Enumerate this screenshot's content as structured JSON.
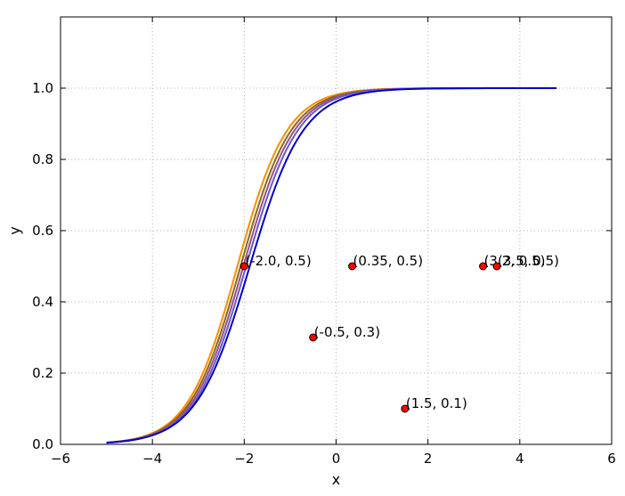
{
  "chart_data": {
    "type": "line",
    "title": "",
    "xlabel": "x",
    "ylabel": "y",
    "xlim": [
      -6,
      6
    ],
    "ylim": [
      0,
      1.2
    ],
    "x_ticks": [
      "−6",
      "−4",
      "−2",
      "0",
      "2",
      "4",
      "6"
    ],
    "x_tick_values": [
      -6,
      -4,
      -2,
      0,
      2,
      4,
      6
    ],
    "y_ticks": [
      "0.0",
      "0.2",
      "0.4",
      "0.6",
      "0.8",
      "1.0"
    ],
    "y_tick_values": [
      0,
      0.2,
      0.4,
      0.6,
      0.8,
      1.0
    ],
    "grid": true,
    "legend": "none",
    "curve_x_range": [
      -5,
      4.8
    ],
    "series": [
      {
        "color": "#ff8c00",
        "center": -2.15,
        "steepness": 1.85
      },
      {
        "color": "#8b6914",
        "center": -2.08,
        "steepness": 1.82
      },
      {
        "color": "#9a4f8c",
        "center": -2.02,
        "steepness": 1.8
      },
      {
        "color": "#6a5acd",
        "center": -1.96,
        "steepness": 1.78
      },
      {
        "color": "#0000cd",
        "center": -1.88,
        "steepness": 1.72
      }
    ],
    "points": [
      {
        "x": -2.0,
        "y": 0.5,
        "label": "(-2.0, 0.5)"
      },
      {
        "x": 0.35,
        "y": 0.5,
        "label": "(0.35, 0.5)"
      },
      {
        "x": 3.2,
        "y": 0.5,
        "label": "(3.2, 0.5)"
      },
      {
        "x": 3.5,
        "y": 0.5,
        "label": "(3.5, 0.5)"
      },
      {
        "x": -0.5,
        "y": 0.3,
        "label": "(-0.5, 0.3)"
      },
      {
        "x": 1.5,
        "y": 0.1,
        "label": "(1.5, 0.1)"
      }
    ],
    "point_color": "#ff0000"
  }
}
